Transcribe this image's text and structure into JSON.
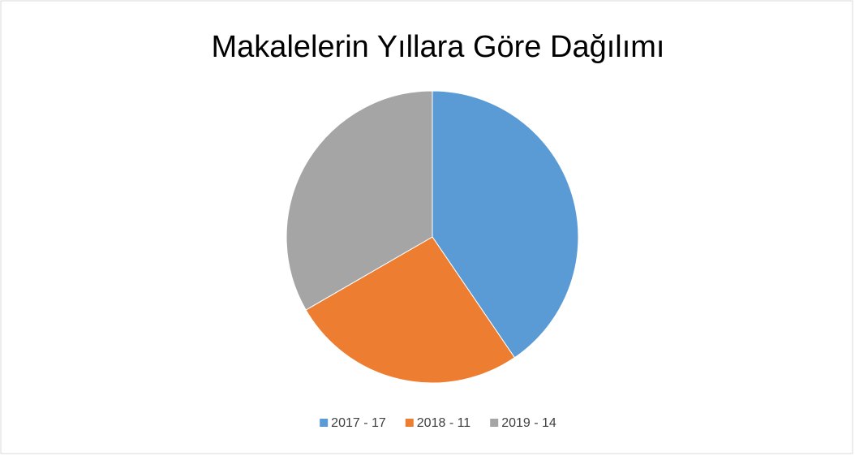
{
  "chart_data": {
    "type": "pie",
    "title": "Makalelerin Yıllara Göre Dağılımı",
    "categories": [
      "2017 - 17",
      "2018 - 11",
      "2019 - 14"
    ],
    "values": [
      17,
      11,
      14
    ],
    "colors": [
      "#5b9bd5",
      "#ed7d31",
      "#a5a5a5"
    ],
    "legend": "bottom"
  }
}
